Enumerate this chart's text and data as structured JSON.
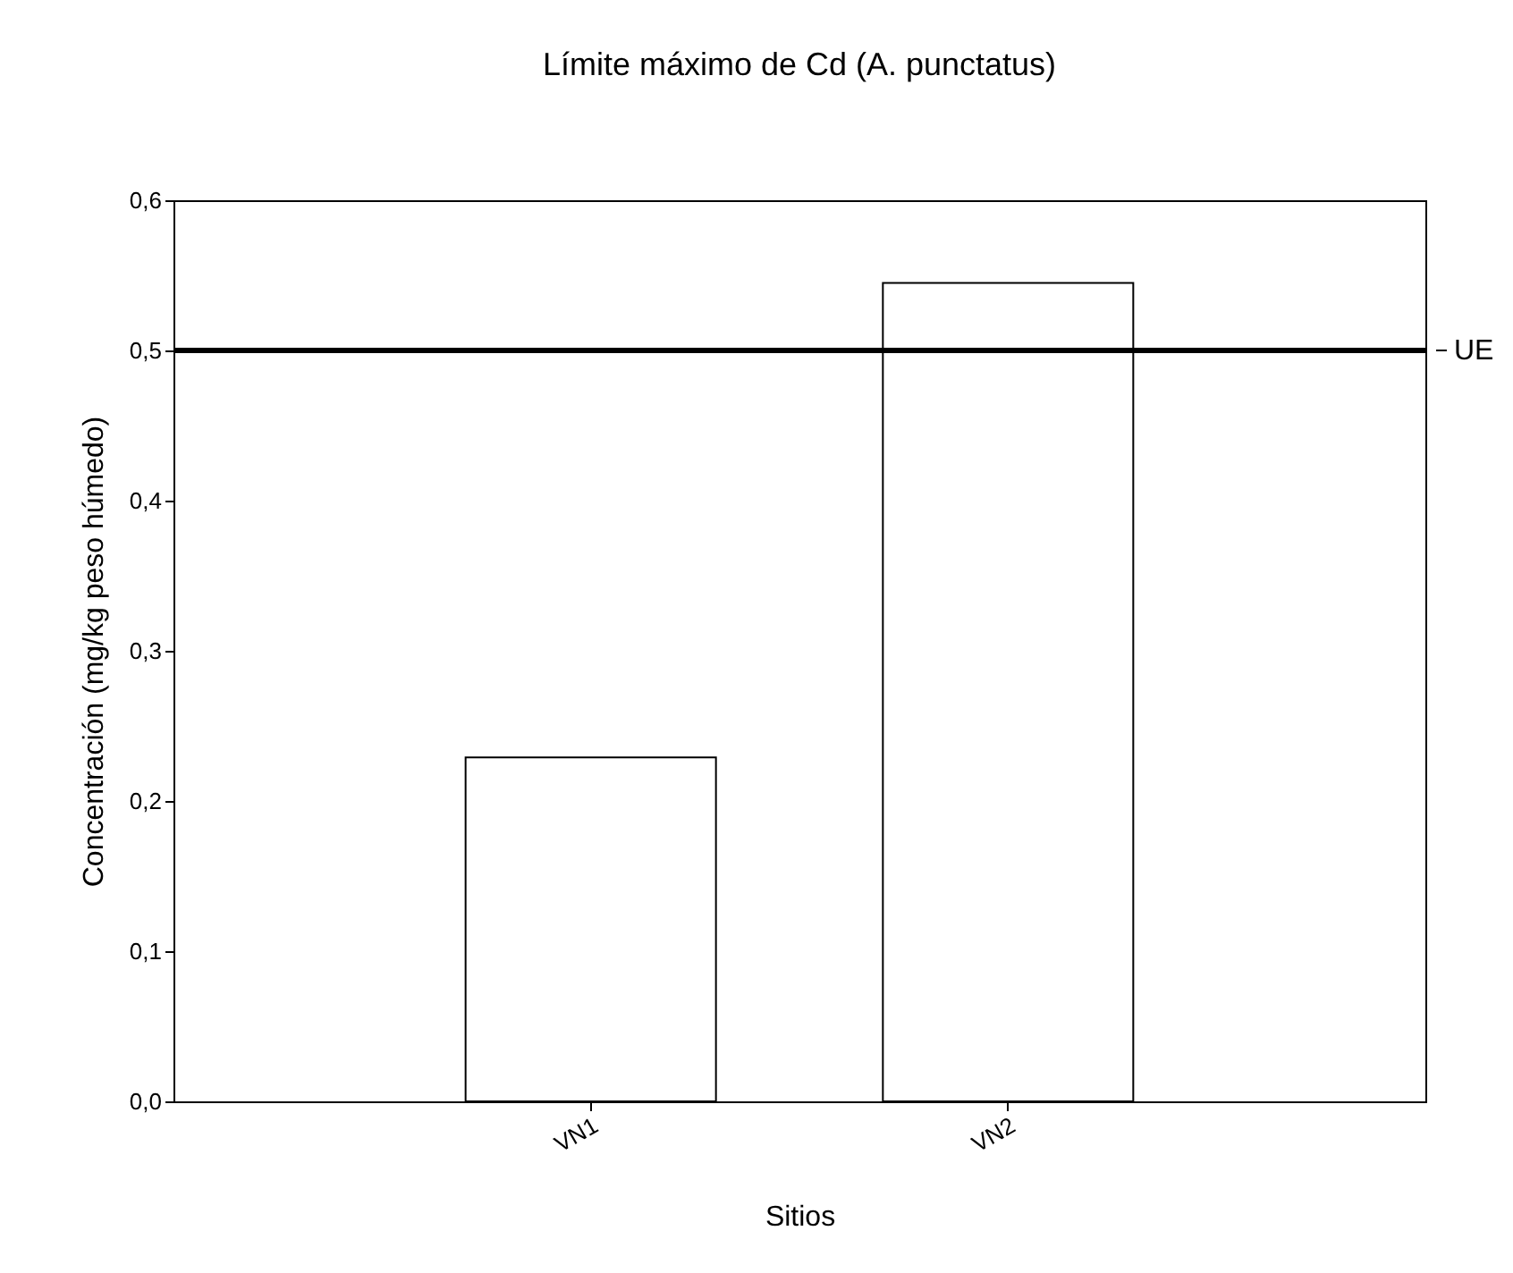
{
  "chart_data": {
    "type": "bar",
    "title": "Límite máximo de Cd (A. punctatus)",
    "xlabel": "Sitios",
    "ylabel": "Concentración (mg/kg peso húmedo)",
    "categories": [
      "VN1",
      "VN2"
    ],
    "values": [
      0.229,
      0.545
    ],
    "color": "#ffffff",
    "ylim": [
      0,
      0.6
    ],
    "yticks": [
      {
        "value": 0,
        "label": "0,0"
      },
      {
        "value": 0.1,
        "label": "0,1"
      },
      {
        "value": 0.2,
        "label": "0,2"
      },
      {
        "value": 0.3,
        "label": "0,3"
      },
      {
        "value": 0.4,
        "label": "0,4"
      },
      {
        "value": 0.5,
        "label": "0,5"
      },
      {
        "value": 0.6,
        "label": "0,6"
      }
    ],
    "ref_lines": [
      {
        "axis": "y",
        "value": 0.5,
        "label": "UE",
        "color": "#000000"
      }
    ],
    "grid": false
  }
}
